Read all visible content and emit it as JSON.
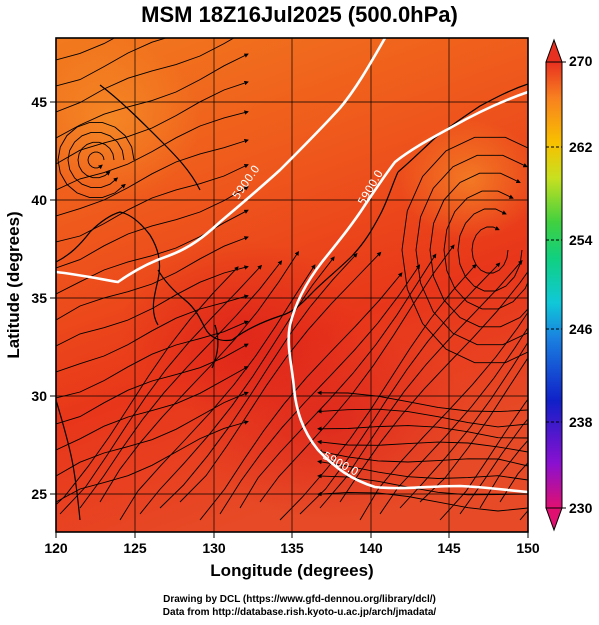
{
  "title": "MSM 18Z16Jul2025 (500.0hPa)",
  "x_axis": {
    "label": "Longitude (degrees)",
    "ticks": [
      "120",
      "125",
      "130",
      "135",
      "140",
      "145",
      "150"
    ],
    "range": [
      120,
      150
    ]
  },
  "y_axis": {
    "label": "Latitude  (degrees)",
    "ticks": [
      "25",
      "30",
      "35",
      "40",
      "45"
    ],
    "range": [
      22.4,
      47.6
    ]
  },
  "colorbar": {
    "min": "230",
    "max": "270",
    "tick_labels": [
      "270",
      "262",
      "254",
      "246",
      "238",
      "230"
    ],
    "colors": [
      "#e01070",
      "#8a10d0",
      "#1020c8",
      "#1aa0e0",
      "#10d080",
      "#40d040",
      "#c8e020",
      "#f8c000",
      "#f88020",
      "#e83020"
    ]
  },
  "contour_level": "5900.0",
  "contour_labels": [
    "5900.0",
    "5900.0",
    "5900.0"
  ],
  "credits": {
    "line1": "Drawing by DCL (https://www.gfd-dennou.org/library/dcl/)",
    "line2": "Data from http://database.rish.kyoto-u.ac.jp/arch/jmadata/"
  }
}
